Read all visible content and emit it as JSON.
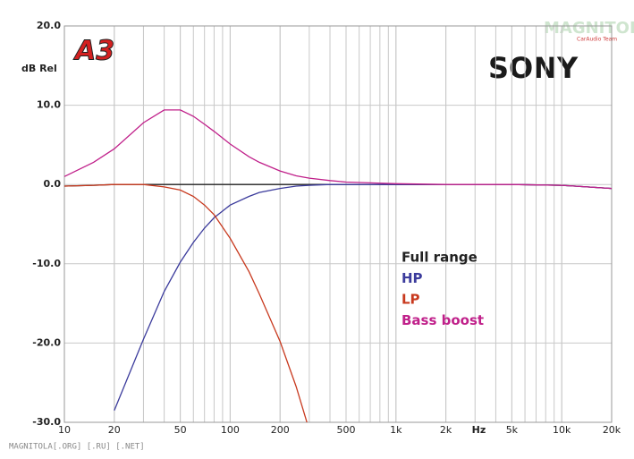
{
  "chart_data": {
    "type": "line",
    "xscale": "log",
    "y_label": "dB Rel",
    "x_unit_label": "Hz",
    "brand": "SONY",
    "logo": "A3",
    "watermark": "MAGNITOLA",
    "watermark_sub": "CarAudio Team",
    "footer": "MAGNITOLA[.ORG] [.RU] [.NET]",
    "x": [
      10,
      15,
      20,
      30,
      40,
      50,
      60,
      70,
      80,
      100,
      130,
      150,
      200,
      250,
      300,
      400,
      500,
      700,
      1000,
      2000,
      5000,
      10000,
      20000
    ],
    "series": [
      {
        "name": "Full range",
        "color": "#222222",
        "values": [
          -0.2,
          -0.1,
          0,
          0,
          0,
          0,
          0,
          0,
          0,
          0,
          0,
          0,
          0,
          0,
          0,
          0,
          0,
          0,
          0,
          0,
          0,
          -0.1,
          -0.5
        ]
      },
      {
        "name": "HP",
        "color": "#3b3b9c",
        "values": [
          null,
          null,
          -28.5,
          -19.5,
          -13.5,
          -9.8,
          -7.3,
          -5.5,
          -4.2,
          -2.6,
          -1.5,
          -1.0,
          -0.5,
          -0.2,
          -0.1,
          0,
          0,
          0,
          0,
          0,
          0,
          -0.1,
          -0.5
        ]
      },
      {
        "name": "LP",
        "color": "#c8391e",
        "values": [
          -0.2,
          -0.1,
          0,
          0,
          -0.3,
          -0.7,
          -1.5,
          -2.6,
          -3.8,
          -6.8,
          -11,
          -13.8,
          -19.8,
          -25.5,
          -31,
          null,
          null,
          null,
          null,
          null,
          null,
          null,
          null
        ]
      },
      {
        "name": "Bass boost",
        "color": "#c0208a",
        "values": [
          1.0,
          2.8,
          4.5,
          7.8,
          9.4,
          9.4,
          8.6,
          7.6,
          6.7,
          5.1,
          3.5,
          2.8,
          1.7,
          1.1,
          0.8,
          0.5,
          0.3,
          0.2,
          0.1,
          0,
          0,
          -0.1,
          -0.5
        ]
      }
    ],
    "xlim": [
      10,
      20000
    ],
    "ylim": [
      -30,
      20
    ],
    "xticks": [
      10,
      20,
      50,
      100,
      200,
      500,
      {
        "value": 1000,
        "label": "1k"
      },
      {
        "value": 2000,
        "label": "2k"
      },
      {
        "value": 5000,
        "label": "5k"
      },
      {
        "value": 10000,
        "label": "10k"
      },
      {
        "value": 20000,
        "label": "20k"
      }
    ],
    "yticks": [
      {
        "value": 20,
        "label": "20.0"
      },
      {
        "value": 10,
        "label": "10.0"
      },
      {
        "value": 0,
        "label": "0.0"
      },
      {
        "value": -10,
        "label": "-10.0"
      },
      {
        "value": -20,
        "label": "-20.0"
      },
      {
        "value": -30,
        "label": "-30.0"
      }
    ],
    "grid": true
  }
}
